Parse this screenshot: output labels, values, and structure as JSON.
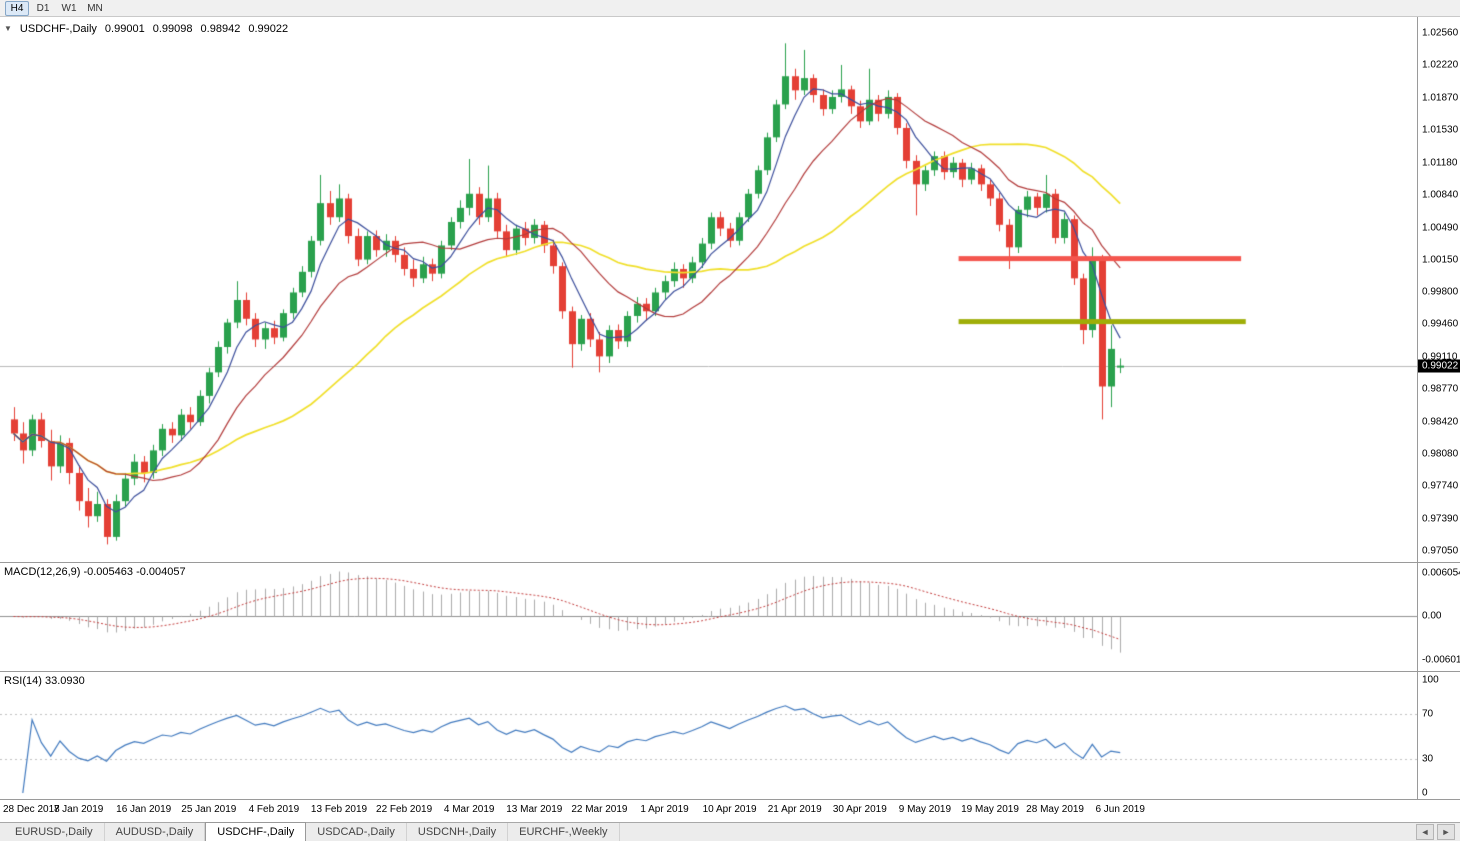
{
  "toolbar": {
    "timeframes": [
      {
        "label": "H4",
        "active": true
      },
      {
        "label": "D1",
        "active": false
      },
      {
        "label": "W1",
        "active": false
      },
      {
        "label": "MN",
        "active": false
      }
    ]
  },
  "main_chart": {
    "title": "USDCHF-,Daily",
    "ohlc_text": "0.99001 0.99098 0.98942 0.99022",
    "current_price_label": "0.99022"
  },
  "macd": {
    "header": "MACD(12,26,9) -0.005463 -0.004057",
    "axis_labels": [
      "0.006054",
      "0.00",
      "-0.006011"
    ],
    "macd_value": "-0.005463",
    "signal_value": "-0.004057"
  },
  "rsi": {
    "header": "RSI(14) 33.0930",
    "axis_labels": [
      "100",
      "70",
      "30",
      "0"
    ],
    "value": "33.0930",
    "levels": [
      70,
      30
    ]
  },
  "tabs": [
    {
      "label": "EURUSD-,Daily",
      "active": false
    },
    {
      "label": "AUDUSD-,Daily",
      "active": false
    },
    {
      "label": "USDCHF-,Daily",
      "active": true
    },
    {
      "label": "USDCAD-,Daily",
      "active": false
    },
    {
      "label": "USDCNH-,Daily",
      "active": false
    },
    {
      "label": "EURCHF-,Weekly",
      "active": false
    }
  ],
  "tab_scroll": {
    "left": "◄",
    "right": "►"
  },
  "colors": {
    "bull": "#2aa14d",
    "bear": "#e43f35",
    "ma_fast": "#3c4f9c",
    "ma_mid": "#b23b3b",
    "ma_slow": "#f0df2a",
    "macd_hist": "#ababab",
    "macd_signal": "#c23b3b",
    "rsi_line": "#4079be",
    "level_dotted": "#c0c0c0",
    "current_price_line": "#b8b8b8",
    "resistance": "#f4564e",
    "support": "#9fae08"
  },
  "chart_data": {
    "type": "candlestick",
    "symbol": "USDCHF-",
    "period": "Daily",
    "current_price": 0.99022,
    "last_bar_ohlc": {
      "open": 0.99001,
      "high": 0.99098,
      "low": 0.98942,
      "close": 0.99022
    },
    "price_axis_labels": [
      "1.02560",
      "1.02220",
      "1.01870",
      "1.01530",
      "1.01180",
      "1.00840",
      "1.00490",
      "1.00150",
      "0.99800",
      "0.99460",
      "0.99110",
      "0.98770",
      "0.98420",
      "0.98080",
      "0.97740",
      "0.97390",
      "0.97050"
    ],
    "price_axis_top": 1.0256,
    "price_axis_bottom": 0.9705,
    "date_labels": [
      "28 Dec 2018",
      "7 Jan 2019",
      "16 Jan 2019",
      "25 Jan 2019",
      "4 Feb 2019",
      "13 Feb 2019",
      "22 Feb 2019",
      "4 Mar 2019",
      "13 Mar 2019",
      "22 Mar 2019",
      "1 Apr 2019",
      "10 Apr 2019",
      "21 Apr 2019",
      "30 Apr 2019",
      "9 May 2019",
      "19 May 2019",
      "28 May 2019",
      "6 Jun 2019"
    ],
    "bars_per_date_tick": 7,
    "ma_periods": {
      "fast": 5,
      "mid": 13,
      "slow": 30
    },
    "hlines": [
      {
        "price": 1.0016,
        "color": "#f4564e",
        "from_bar": 102,
        "to_bar": 132,
        "width": 5
      },
      {
        "price": 0.9949,
        "color": "#9fae08",
        "from_bar": 102,
        "to_bar": 132.5,
        "width": 5
      }
    ],
    "candles": [
      [
        0.9845,
        0.9858,
        0.9822,
        0.983
      ],
      [
        0.983,
        0.9842,
        0.9798,
        0.9812
      ],
      [
        0.9812,
        0.985,
        0.9806,
        0.9845
      ],
      [
        0.9845,
        0.9852,
        0.9815,
        0.9822
      ],
      [
        0.9822,
        0.9834,
        0.978,
        0.9795
      ],
      [
        0.9795,
        0.9828,
        0.9788,
        0.982
      ],
      [
        0.982,
        0.9825,
        0.9776,
        0.9788
      ],
      [
        0.9788,
        0.9796,
        0.9748,
        0.9758
      ],
      [
        0.9758,
        0.9772,
        0.973,
        0.9742
      ],
      [
        0.9742,
        0.9768,
        0.9736,
        0.9755
      ],
      [
        0.9755,
        0.976,
        0.9712,
        0.972
      ],
      [
        0.972,
        0.9765,
        0.9716,
        0.9758
      ],
      [
        0.9758,
        0.9788,
        0.9752,
        0.9782
      ],
      [
        0.9782,
        0.9808,
        0.9775,
        0.98
      ],
      [
        0.98,
        0.9806,
        0.9778,
        0.9788
      ],
      [
        0.9788,
        0.9818,
        0.9782,
        0.9812
      ],
      [
        0.9812,
        0.984,
        0.9806,
        0.9835
      ],
      [
        0.9835,
        0.9842,
        0.982,
        0.9828
      ],
      [
        0.9828,
        0.9856,
        0.9822,
        0.985
      ],
      [
        0.985,
        0.9858,
        0.9835,
        0.9842
      ],
      [
        0.9842,
        0.9876,
        0.9838,
        0.987
      ],
      [
        0.987,
        0.99,
        0.9862,
        0.9895
      ],
      [
        0.9895,
        0.9928,
        0.989,
        0.9922
      ],
      [
        0.9922,
        0.9952,
        0.9915,
        0.9948
      ],
      [
        0.9948,
        0.9992,
        0.9942,
        0.9972
      ],
      [
        0.9972,
        0.998,
        0.9945,
        0.9952
      ],
      [
        0.9952,
        0.9958,
        0.9922,
        0.993
      ],
      [
        0.993,
        0.9948,
        0.992,
        0.9942
      ],
      [
        0.9942,
        0.995,
        0.9925,
        0.9932
      ],
      [
        0.9932,
        0.9962,
        0.9928,
        0.9958
      ],
      [
        0.9958,
        0.9985,
        0.9952,
        0.998
      ],
      [
        0.998,
        1.0008,
        0.9975,
        1.0002
      ],
      [
        1.0002,
        1.004,
        0.9996,
        1.0035
      ],
      [
        1.0035,
        1.0105,
        1.003,
        1.0075
      ],
      [
        1.0075,
        1.0088,
        1.0052,
        1.006
      ],
      [
        1.006,
        1.0095,
        1.0055,
        1.008
      ],
      [
        1.008,
        1.0085,
        1.0032,
        1.004
      ],
      [
        1.004,
        1.0048,
        1.0008,
        1.0015
      ],
      [
        1.0015,
        1.0045,
        1.001,
        1.004
      ],
      [
        1.004,
        1.0046,
        1.0018,
        1.0025
      ],
      [
        1.0025,
        1.0042,
        1.0018,
        1.0035
      ],
      [
        1.0035,
        1.004,
        1.0012,
        1.002
      ],
      [
        1.002,
        1.0028,
        0.9998,
        1.0005
      ],
      [
        1.0005,
        1.0015,
        0.9986,
        0.9995
      ],
      [
        0.9995,
        1.0018,
        0.999,
        1.001
      ],
      [
        1.001,
        1.0016,
        0.9992,
        1.0
      ],
      [
        1.0,
        1.0035,
        0.9995,
        1.003
      ],
      [
        1.003,
        1.006,
        1.0025,
        1.0055
      ],
      [
        1.0055,
        1.0078,
        1.0048,
        1.007
      ],
      [
        1.007,
        1.0122,
        1.0062,
        1.0085
      ],
      [
        1.0085,
        1.0092,
        1.0052,
        1.006
      ],
      [
        1.006,
        1.0115,
        1.0055,
        1.008
      ],
      [
        1.008,
        1.0086,
        1.0038,
        1.0045
      ],
      [
        1.0045,
        1.0052,
        1.0018,
        1.0025
      ],
      [
        1.0025,
        1.0052,
        1.002,
        1.0048
      ],
      [
        1.0048,
        1.0055,
        1.003,
        1.0038
      ],
      [
        1.0038,
        1.0058,
        1.0032,
        1.0052
      ],
      [
        1.0052,
        1.0056,
        1.0022,
        1.003
      ],
      [
        1.003,
        1.0036,
        1.0,
        1.0008
      ],
      [
        1.0008,
        1.0012,
        0.9952,
        0.996
      ],
      [
        0.996,
        0.9965,
        0.99,
        0.9925
      ],
      [
        0.9925,
        0.9956,
        0.9918,
        0.9952
      ],
      [
        0.9952,
        0.9958,
        0.9922,
        0.993
      ],
      [
        0.993,
        0.9938,
        0.9895,
        0.9912
      ],
      [
        0.9912,
        0.9945,
        0.9905,
        0.994
      ],
      [
        0.994,
        0.9946,
        0.992,
        0.9928
      ],
      [
        0.9928,
        0.996,
        0.9922,
        0.9955
      ],
      [
        0.9955,
        0.9975,
        0.9948,
        0.9968
      ],
      [
        0.9968,
        0.9974,
        0.995,
        0.996
      ],
      [
        0.996,
        0.9985,
        0.9955,
        0.998
      ],
      [
        0.998,
        0.9998,
        0.9972,
        0.9992
      ],
      [
        0.9992,
        1.0012,
        0.9986,
        1.0005
      ],
      [
        1.0005,
        1.001,
        0.9985,
        0.9995
      ],
      [
        0.9995,
        1.0018,
        0.999,
        1.0012
      ],
      [
        1.0012,
        1.0038,
        1.0006,
        1.0032
      ],
      [
        1.0032,
        1.0065,
        1.0026,
        1.006
      ],
      [
        1.006,
        1.0066,
        1.004,
        1.0048
      ],
      [
        1.0048,
        1.0054,
        1.0028,
        1.0035
      ],
      [
        1.0035,
        1.0065,
        1.003,
        1.006
      ],
      [
        1.006,
        1.009,
        1.0055,
        1.0085
      ],
      [
        1.0085,
        1.0115,
        1.008,
        1.011
      ],
      [
        1.011,
        1.015,
        1.0105,
        1.0145
      ],
      [
        1.0145,
        1.0185,
        1.014,
        1.018
      ],
      [
        1.018,
        1.0245,
        1.0175,
        1.021
      ],
      [
        1.021,
        1.0218,
        1.0185,
        1.0195
      ],
      [
        1.0195,
        1.0238,
        1.019,
        1.0208
      ],
      [
        1.0208,
        1.0212,
        1.0182,
        1.019
      ],
      [
        1.019,
        1.0196,
        1.0168,
        1.0175
      ],
      [
        1.0175,
        1.0195,
        1.017,
        1.0188
      ],
      [
        1.0188,
        1.0222,
        1.0182,
        1.0196
      ],
      [
        1.0196,
        1.02,
        1.017,
        1.0178
      ],
      [
        1.0178,
        1.0184,
        1.0155,
        1.0162
      ],
      [
        1.0162,
        1.0218,
        1.0158,
        1.0185
      ],
      [
        1.0185,
        1.019,
        1.0162,
        1.017
      ],
      [
        1.017,
        1.0195,
        1.0165,
        1.0188
      ],
      [
        1.0188,
        1.0192,
        1.0148,
        1.0155
      ],
      [
        1.0155,
        1.016,
        1.0112,
        1.012
      ],
      [
        1.012,
        1.0126,
        1.0062,
        1.0095
      ],
      [
        1.0095,
        1.0115,
        1.0088,
        1.011
      ],
      [
        1.011,
        1.013,
        1.0104,
        1.0125
      ],
      [
        1.0125,
        1.013,
        1.01,
        1.0108
      ],
      [
        1.0108,
        1.0124,
        1.0102,
        1.0118
      ],
      [
        1.0118,
        1.0122,
        1.0092,
        1.01
      ],
      [
        1.01,
        1.0118,
        1.0095,
        1.0112
      ],
      [
        1.0112,
        1.0116,
        1.0088,
        1.0095
      ],
      [
        1.0095,
        1.01,
        1.0072,
        1.008
      ],
      [
        1.008,
        1.0086,
        1.0045,
        1.0052
      ],
      [
        1.0052,
        1.0058,
        1.0005,
        1.0028
      ],
      [
        1.0028,
        1.0072,
        1.0022,
        1.0068
      ],
      [
        1.0068,
        1.0088,
        1.006,
        1.0082
      ],
      [
        1.0082,
        1.0086,
        1.0062,
        1.007
      ],
      [
        1.007,
        1.0105,
        1.0065,
        1.0085
      ],
      [
        1.0085,
        1.009,
        1.0032,
        1.0038
      ],
      [
        1.0038,
        1.0065,
        1.0032,
        1.0058
      ],
      [
        1.0058,
        1.0062,
        0.9988,
        0.9995
      ],
      [
        0.9995,
        1.0,
        0.9925,
        0.994
      ],
      [
        0.994,
        1.0028,
        0.9932,
        1.0015
      ],
      [
        1.0015,
        1.002,
        0.9845,
        0.988
      ],
      [
        0.988,
        0.9945,
        0.9858,
        0.992
      ],
      [
        0.99001,
        0.99098,
        0.98942,
        0.99022
      ]
    ]
  }
}
